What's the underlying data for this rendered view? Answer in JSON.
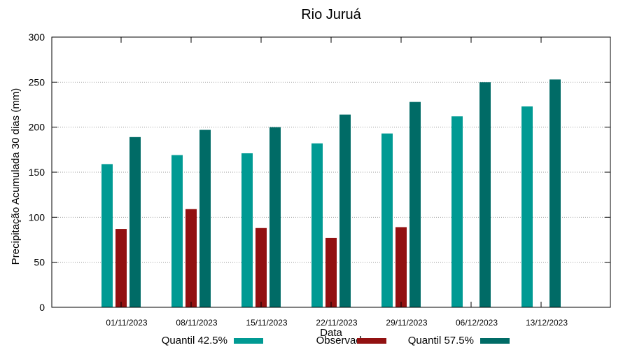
{
  "chart_data": {
    "type": "bar",
    "title": "Rio Juruá",
    "xlabel": "Data",
    "ylabel": "Precipitação Acumulada 30 dias (mm)",
    "ylim": [
      0,
      300
    ],
    "yticks": [
      0,
      50,
      100,
      150,
      200,
      250,
      300
    ],
    "grid": true,
    "categories": [
      "01/11/2023",
      "08/11/2023",
      "15/11/2023",
      "22/11/2023",
      "29/11/2023",
      "06/12/2023",
      "13/12/2023"
    ],
    "series": [
      {
        "name": "Quantil 42.5%",
        "color": "#009a93",
        "values": [
          159,
          169,
          171,
          182,
          193,
          212,
          223
        ]
      },
      {
        "name": "Observado",
        "color": "#921111",
        "values": [
          87,
          109,
          88,
          77,
          89,
          null,
          null
        ]
      },
      {
        "name": "Quantil 57.5%",
        "color": "#006b66",
        "values": [
          189,
          197,
          200,
          214,
          228,
          250,
          253
        ]
      }
    ],
    "legend_position": "bottom"
  }
}
